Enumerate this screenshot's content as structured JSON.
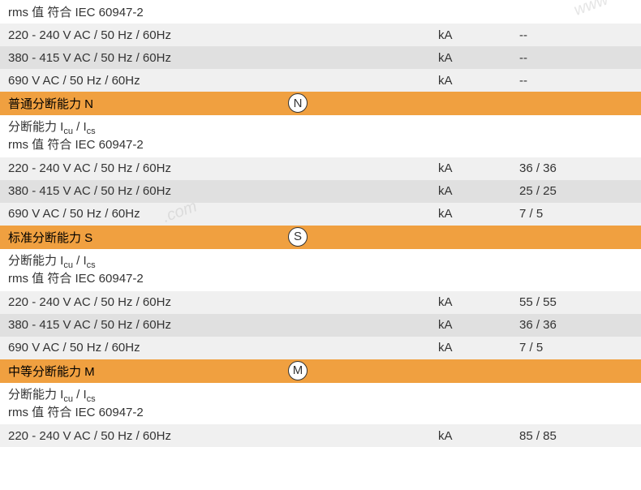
{
  "colors": {
    "orange_bg": "#f0a040",
    "light_row": "#f0f0f0",
    "dark_row": "#e0e0e0",
    "white_row": "#ffffff",
    "text": "#333333",
    "circle_border": "#333333"
  },
  "top_desc": {
    "line1": "rms 值 符合 IEC 60947-2"
  },
  "top_rows": [
    {
      "label": "220 - 240 V AC / 50 Hz / 60Hz",
      "unit": "kA",
      "value": "--"
    },
    {
      "label": "380 - 415 V AC / 50 Hz / 60Hz",
      "unit": "kA",
      "value": "--"
    },
    {
      "label": "690 V AC / 50 Hz / 60Hz",
      "unit": "kA",
      "value": "--"
    }
  ],
  "section_n": {
    "title": "普通分断能力 N",
    "letter": "N",
    "desc_line1_prefix": "分断能力 I",
    "desc_line1_sub1": "cu",
    "desc_line1_mid": " / I",
    "desc_line1_sub2": "cs",
    "desc_line2": "rms 值 符合 IEC 60947-2",
    "rows": [
      {
        "label": "220 - 240 V AC / 50 Hz / 60Hz",
        "unit": "kA",
        "value": "36 / 36"
      },
      {
        "label": "380 - 415 V AC / 50 Hz / 60Hz",
        "unit": "kA",
        "value": "25 / 25"
      },
      {
        "label": "690 V AC / 50 Hz / 60Hz",
        "unit": "kA",
        "value": "7 / 5"
      }
    ]
  },
  "section_s": {
    "title": "标准分断能力 S",
    "letter": "S",
    "desc_line1_prefix": "分断能力 I",
    "desc_line1_sub1": "cu",
    "desc_line1_mid": " / I",
    "desc_line1_sub2": "cs",
    "desc_line2": "rms 值 符合 IEC 60947-2",
    "rows": [
      {
        "label": "220 - 240 V AC / 50 Hz / 60Hz",
        "unit": "kA",
        "value": "55 / 55"
      },
      {
        "label": "380 - 415 V AC / 50 Hz / 60Hz",
        "unit": "kA",
        "value": "36 / 36"
      },
      {
        "label": "690 V AC / 50 Hz / 60Hz",
        "unit": "kA",
        "value": "7 / 5"
      }
    ]
  },
  "section_m": {
    "title": "中等分断能力 M",
    "letter": "M",
    "desc_line1_prefix": "分断能力 I",
    "desc_line1_sub1": "cu",
    "desc_line1_mid": " / I",
    "desc_line1_sub2": "cs",
    "desc_line2": "rms 值 符合 IEC 60947-2",
    "rows": [
      {
        "label": "220 - 240 V AC / 50 Hz / 60Hz",
        "unit": "kA",
        "value": "85 / 85"
      }
    ]
  }
}
